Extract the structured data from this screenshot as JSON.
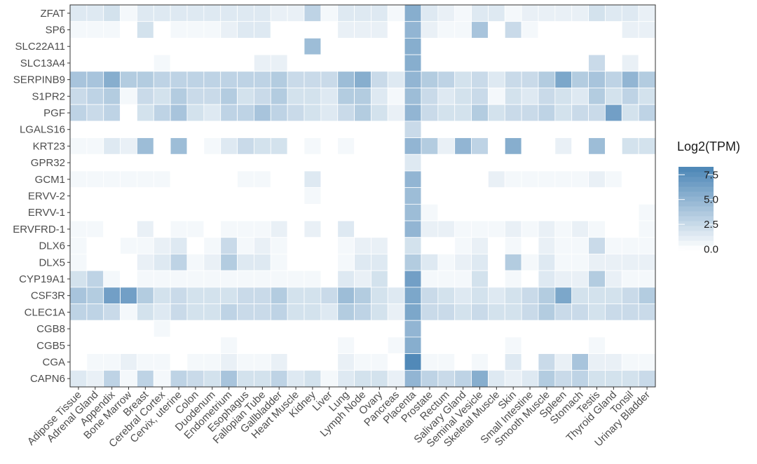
{
  "chart_data": {
    "type": "heatmap",
    "title": "",
    "xlabel": "",
    "ylabel": "",
    "x": [
      "Adipose Tissue",
      "Adrenal Gland",
      "Appendix",
      "Bone Marrow",
      "Breast",
      "Cerebral Cortex",
      "Cervix, uterine",
      "Colon",
      "Duodenum",
      "Endometrium",
      "Esophagus",
      "Fallopian Tube",
      "Gallbladder",
      "Heart Muscle",
      "Kidney",
      "Liver",
      "Lung",
      "Lymph Node",
      "Ovary",
      "Pancreas",
      "Placenta",
      "Prostate",
      "Rectum",
      "Salivary Gland",
      "Seminal Vesicle",
      "Skeletal Muscle",
      "Skin",
      "Small Intestine",
      "Smooth Muscle",
      "Spleen",
      "Stomach",
      "Testis",
      "Thyroid Gland",
      "Tonsil",
      "Urinary Bladder"
    ],
    "y": [
      "ZFAT",
      "SP6",
      "SLC22A11",
      "SLC13A4",
      "SERPINB9",
      "S1PR2",
      "PGF",
      "LGALS16",
      "KRT23",
      "GPR32",
      "GCM1",
      "ERVV-2",
      "ERVV-1",
      "ERVFRD-1",
      "DLX6",
      "DLX5",
      "CYP19A1",
      "CSF3R",
      "CLEC1A",
      "CGB8",
      "CGB5",
      "CGA",
      "CAPN6"
    ],
    "values": [
      [
        1.5,
        1.5,
        2.0,
        0.5,
        1.5,
        1.5,
        1.5,
        1.5,
        1.5,
        1.5,
        1.5,
        1.5,
        1.0,
        1.0,
        3.0,
        0.5,
        1.5,
        1.5,
        1.5,
        0.5,
        5.5,
        1.5,
        1.0,
        0.5,
        1.5,
        1.5,
        0.5,
        1.0,
        1.0,
        1.0,
        1.0,
        2.0,
        1.5,
        1.5,
        1.0
      ],
      [
        0.5,
        0.5,
        0.5,
        0,
        2.0,
        0,
        0.5,
        0.5,
        0.5,
        1.0,
        1.5,
        1.5,
        0,
        0,
        0,
        0,
        1.0,
        1.0,
        1.0,
        0,
        5.0,
        1.0,
        0.5,
        0.5,
        4.0,
        0,
        2.5,
        0.5,
        0,
        0,
        0,
        0,
        0,
        1.0,
        1.0
      ],
      [
        0,
        0,
        0,
        0,
        0,
        0,
        0,
        0,
        0,
        0,
        0,
        0,
        0,
        0,
        4.5,
        0,
        0,
        0,
        0,
        0,
        5.5,
        0,
        0,
        0,
        0,
        0,
        0,
        0,
        0,
        0,
        0,
        0,
        0,
        0,
        0
      ],
      [
        0,
        0,
        0,
        0,
        0,
        0.5,
        0,
        0,
        0,
        0,
        0,
        1.0,
        1.0,
        0,
        0,
        0,
        0,
        0,
        0,
        0,
        5.5,
        0,
        0,
        0,
        0,
        0,
        0,
        0,
        0,
        0,
        0,
        2.5,
        0,
        1.0,
        0
      ],
      [
        4.0,
        4.0,
        5.5,
        3.5,
        3.5,
        3.0,
        3.0,
        3.0,
        3.0,
        3.0,
        3.0,
        3.0,
        3.5,
        2.5,
        2.5,
        2.5,
        4.5,
        5.5,
        2.5,
        1.5,
        5.0,
        3.5,
        3.0,
        2.0,
        2.5,
        1.5,
        2.5,
        2.5,
        3.5,
        6.0,
        3.5,
        4.0,
        3.0,
        5.0,
        3.5
      ],
      [
        2.5,
        3.0,
        3.5,
        0.5,
        2.5,
        2.0,
        3.5,
        2.5,
        2.5,
        3.5,
        2.0,
        2.5,
        3.5,
        2.0,
        2.0,
        1.5,
        3.5,
        3.5,
        1.5,
        0.5,
        4.5,
        2.5,
        1.5,
        2.0,
        2.5,
        0.5,
        2.0,
        1.5,
        2.5,
        2.0,
        1.5,
        3.5,
        2.0,
        3.0,
        2.0
      ],
      [
        3.0,
        2.5,
        3.0,
        0,
        2.0,
        3.0,
        4.0,
        2.0,
        1.5,
        3.0,
        3.0,
        4.0,
        3.0,
        2.5,
        2.0,
        1.5,
        2.5,
        3.5,
        2.0,
        1.0,
        5.0,
        2.5,
        2.0,
        2.0,
        3.5,
        2.0,
        2.5,
        2.5,
        3.0,
        2.0,
        2.5,
        2.5,
        6.5,
        2.0,
        3.0
      ],
      [
        0,
        0,
        0,
        0,
        0,
        0,
        0,
        0,
        0,
        0,
        0,
        0,
        0,
        0,
        0,
        0,
        0,
        0,
        0,
        0,
        2.5,
        0,
        0,
        0,
        0,
        0,
        0,
        0,
        0,
        0,
        0,
        0,
        0,
        0,
        0
      ],
      [
        0.5,
        0.5,
        1.5,
        1.0,
        4.5,
        0,
        4.5,
        0,
        0.5,
        1.5,
        2.5,
        2.0,
        2.0,
        0,
        0.5,
        0,
        0.5,
        0,
        0,
        0,
        5.0,
        3.5,
        1.0,
        5.0,
        3.0,
        0,
        5.5,
        0,
        0,
        1.0,
        0,
        4.5,
        0,
        2.0,
        2.0
      ],
      [
        0,
        0,
        0,
        0,
        0,
        0,
        0,
        0,
        0,
        0,
        0,
        0,
        0,
        0,
        0,
        0,
        0,
        0,
        0,
        0,
        1.5,
        0,
        0,
        0,
        0,
        0,
        0,
        0,
        0,
        0,
        0,
        0,
        0,
        0,
        0
      ],
      [
        0.5,
        0.5,
        0.5,
        0.5,
        0.5,
        0.5,
        0,
        0,
        0,
        0,
        0.5,
        0.5,
        0,
        0,
        1.5,
        0,
        0,
        0,
        0,
        0,
        5.0,
        0,
        0,
        0,
        0,
        1.0,
        0.5,
        0.5,
        0.5,
        0.5,
        0.5,
        1.0,
        0.5,
        0,
        0
      ],
      [
        0,
        0,
        0,
        0,
        0,
        0,
        0,
        0,
        0,
        0,
        0,
        0,
        0,
        0,
        0.5,
        0,
        0,
        0,
        0,
        0,
        4.5,
        0,
        0,
        0,
        0,
        0,
        0,
        0,
        0,
        0,
        0,
        0,
        0,
        0,
        0
      ],
      [
        0,
        0,
        0,
        0,
        0,
        0,
        0,
        0,
        0,
        0,
        0,
        0,
        0,
        0,
        0,
        0,
        0,
        0,
        0,
        0,
        4.5,
        0.5,
        0,
        0,
        0,
        0,
        0,
        0,
        0,
        0,
        0,
        0,
        0,
        0,
        0.5
      ],
      [
        0.5,
        0.5,
        0,
        0,
        1.0,
        0,
        0.5,
        0.5,
        0,
        0.5,
        0.5,
        0.5,
        1.0,
        0,
        1.0,
        0,
        1.5,
        0,
        0,
        0,
        5.0,
        1.0,
        1.0,
        0.5,
        0.5,
        0.5,
        1.0,
        0.5,
        1.0,
        0.5,
        1.0,
        0.5,
        0,
        0,
        0.5
      ],
      [
        0.5,
        0,
        0,
        0.5,
        0.5,
        1.0,
        1.5,
        0,
        0.5,
        2.5,
        0.5,
        1.0,
        0.5,
        0,
        0,
        0,
        0.5,
        1.0,
        1.0,
        0,
        2.0,
        0,
        0,
        0.5,
        1.0,
        0,
        0.5,
        0,
        1.0,
        0.5,
        0.5,
        2.5,
        0.5,
        0.5,
        0.5
      ],
      [
        0.5,
        0,
        0,
        0,
        1.0,
        1.5,
        3.0,
        0.5,
        1.0,
        3.5,
        1.5,
        1.5,
        0.5,
        0,
        0,
        0,
        0.5,
        1.5,
        1.5,
        0,
        3.5,
        1.5,
        0.5,
        1.0,
        1.5,
        0,
        3.5,
        0.5,
        1.5,
        0.5,
        0.5,
        1.0,
        1.0,
        1.0,
        1.0
      ],
      [
        2.0,
        3.0,
        0.5,
        0,
        0.5,
        0.5,
        0.5,
        0.5,
        0.5,
        0.5,
        0.5,
        0.5,
        0.5,
        0.5,
        0.5,
        0,
        1.5,
        1.0,
        2.0,
        0,
        6.5,
        0.5,
        0.5,
        0.5,
        2.0,
        0,
        0.5,
        0,
        1.5,
        1.0,
        1.0,
        3.5,
        1.0,
        0.5,
        0.5
      ],
      [
        4.0,
        3.5,
        6.5,
        6.5,
        3.5,
        2.0,
        2.5,
        2.0,
        2.0,
        2.0,
        2.5,
        2.5,
        3.5,
        2.0,
        2.0,
        2.5,
        4.5,
        3.5,
        2.0,
        1.5,
        6.0,
        2.5,
        2.0,
        1.5,
        2.0,
        1.5,
        2.0,
        2.5,
        3.5,
        6.0,
        2.0,
        2.0,
        2.0,
        2.5,
        3.5
      ],
      [
        3.0,
        3.0,
        2.5,
        0.5,
        2.0,
        1.5,
        2.5,
        2.0,
        2.0,
        3.0,
        2.5,
        2.5,
        3.0,
        2.0,
        2.0,
        1.5,
        3.5,
        3.0,
        2.0,
        1.0,
        6.0,
        2.5,
        2.5,
        2.0,
        2.5,
        2.0,
        2.0,
        2.5,
        3.5,
        2.5,
        2.5,
        2.0,
        2.5,
        2.5,
        2.5
      ],
      [
        0,
        0,
        0,
        0,
        0,
        0.5,
        0,
        0,
        0,
        0,
        0,
        0,
        0,
        0,
        0,
        0,
        0,
        0,
        0,
        0,
        5.0,
        0,
        0,
        0,
        0,
        0,
        0,
        0,
        0,
        0,
        0,
        0,
        0,
        0,
        0
      ],
      [
        0,
        0,
        0,
        0,
        0,
        0,
        0,
        0,
        0,
        0.5,
        0,
        0,
        0,
        0,
        0,
        0,
        0.5,
        0,
        0,
        0.5,
        5.5,
        0,
        0,
        0,
        0,
        0,
        0.5,
        0,
        0,
        0,
        0,
        0.5,
        0,
        0,
        0
      ],
      [
        0,
        0.5,
        0.5,
        1.0,
        0.5,
        0.5,
        0,
        0.5,
        0.5,
        1.0,
        0.5,
        0.5,
        1.0,
        0,
        0,
        0,
        1.0,
        0.5,
        0.5,
        0,
        8.0,
        0.5,
        0.5,
        0,
        0.5,
        0,
        1.5,
        0,
        2.5,
        1.0,
        4.0,
        1.0,
        1.0,
        0.5,
        0.5
      ],
      [
        1.5,
        1.0,
        3.0,
        0.5,
        3.0,
        0.5,
        3.0,
        2.5,
        2.0,
        4.0,
        2.0,
        2.0,
        3.0,
        1.5,
        2.0,
        0.5,
        1.5,
        2.0,
        2.0,
        1.0,
        5.0,
        3.0,
        2.5,
        3.0,
        5.5,
        1.5,
        1.0,
        1.5,
        3.5,
        2.5,
        3.0,
        2.0,
        2.0,
        2.0,
        2.5
      ]
    ],
    "colorbar": {
      "title": "Log2(TPM)",
      "ticks": [
        0.0,
        2.5,
        5.0,
        7.5
      ],
      "tick_labels": [
        "0.0",
        "2.5",
        "5.0",
        "7.5"
      ],
      "low_color": "#ffffff",
      "high_color": "#4682b4",
      "range": [
        0,
        8.5
      ]
    },
    "grid": false,
    "legend_position": "right"
  }
}
